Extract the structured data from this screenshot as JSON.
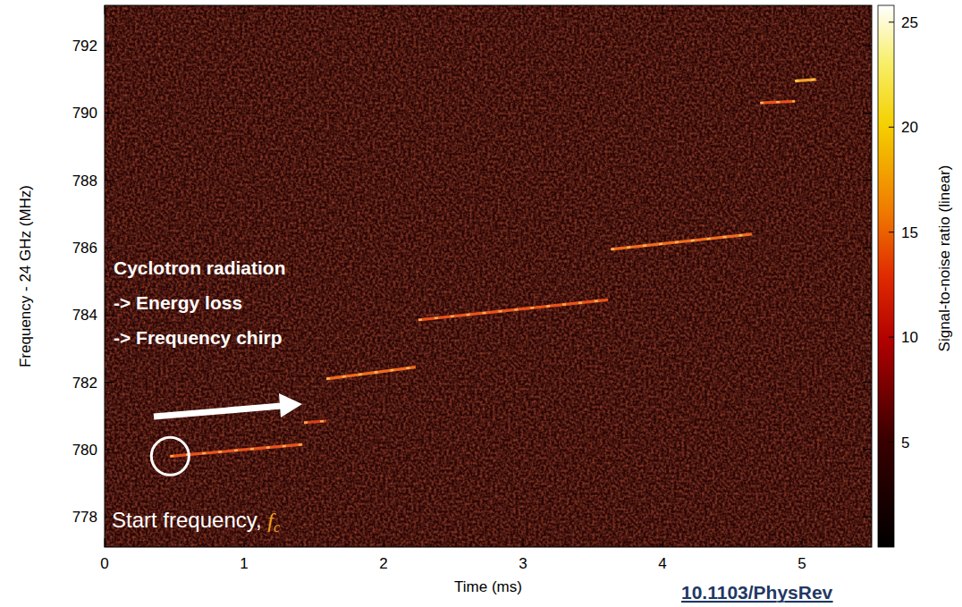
{
  "chart_data": {
    "type": "spectrogram",
    "x_label": "Time (ms)",
    "y_label": "Frequency - 24 GHz (MHz)",
    "xlim": [
      0,
      5.5
    ],
    "xticks": [
      0,
      1,
      2,
      3,
      4,
      5
    ],
    "ylim": [
      777.1,
      793.2
    ],
    "yticks": [
      778,
      780,
      782,
      784,
      786,
      788,
      790,
      792
    ],
    "colorbar": {
      "label": "Signal-to-noise ratio (linear)",
      "range": [
        0,
        25.8
      ],
      "ticks": [
        5,
        10,
        15,
        20,
        25
      ]
    },
    "series": [
      {
        "x": [
          0.47,
          1.42
        ],
        "values": [
          779.8,
          780.15
        ],
        "color": "#e8521d"
      },
      {
        "x": [
          1.43,
          1.59
        ],
        "values": [
          780.8,
          780.85
        ],
        "color": "#d8401a"
      },
      {
        "x": [
          1.59,
          2.23
        ],
        "values": [
          782.1,
          782.45
        ],
        "color": "#ee6a1f"
      },
      {
        "x": [
          2.25,
          3.61
        ],
        "values": [
          783.85,
          784.45
        ],
        "color": "#e8521d"
      },
      {
        "x": [
          3.63,
          4.64
        ],
        "values": [
          785.95,
          786.4
        ],
        "color": "#ee6a1f"
      },
      {
        "x": [
          4.7,
          4.95
        ],
        "values": [
          790.3,
          790.35
        ],
        "color": "#e8521d"
      },
      {
        "x": [
          4.95,
          5.1
        ],
        "values": [
          790.95,
          791.0
        ],
        "color": "#f3a02a"
      }
    ],
    "annotations": [
      "Cyclotron radiation",
      "-> Energy loss",
      "-> Frequency chirp"
    ],
    "start_label": {
      "text": "Start frequency, ",
      "symbol": "f",
      "subscript": "c"
    },
    "source": "10.1103/PhysRev"
  }
}
